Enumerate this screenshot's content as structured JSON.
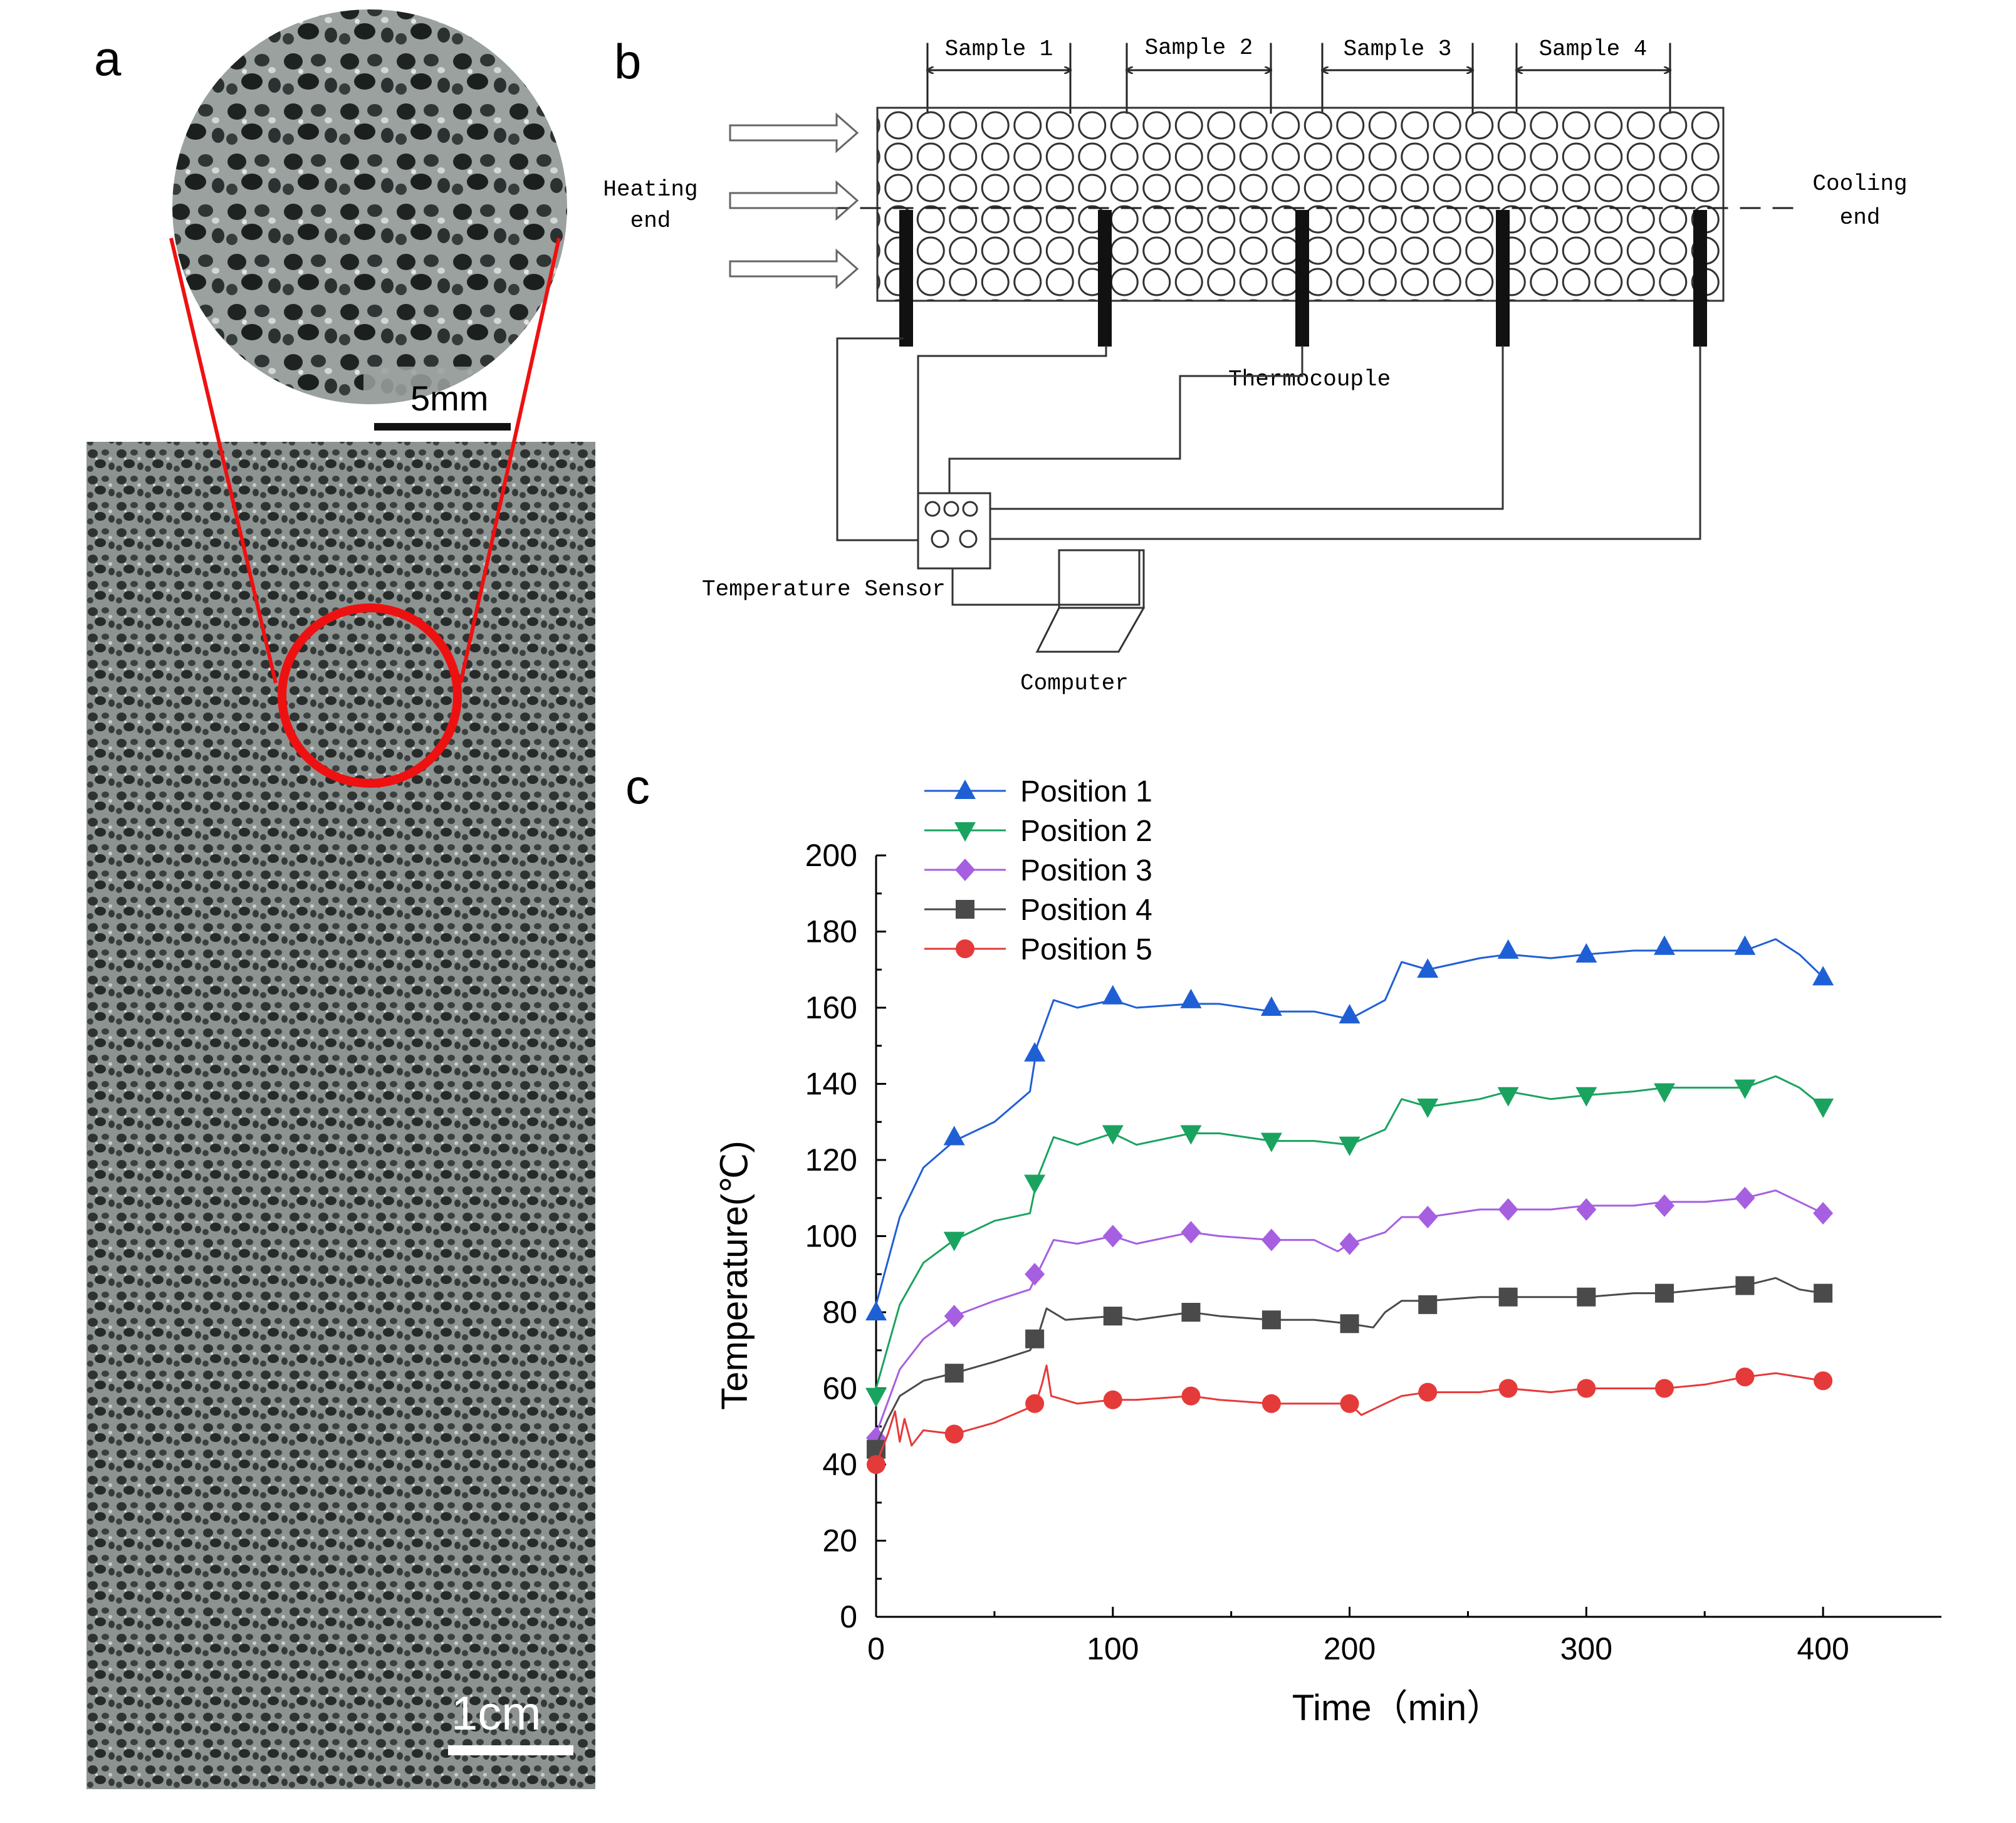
{
  "panels": {
    "a": {
      "letter": "a",
      "zoom_scale_label": "5mm",
      "main_scale_label": "1cm"
    },
    "b": {
      "letter": "b",
      "samples": [
        "Sample 1",
        "Sample 2",
        "Sample 3",
        "Sample 4"
      ],
      "heating_label": [
        "Heating",
        "end"
      ],
      "cooling_label": [
        "Cooling",
        "end"
      ],
      "thermocouple_label": "Thermocouple",
      "sensor_label": "Temperature Sensor",
      "computer_label": "Computer"
    },
    "c": {
      "letter": "c"
    }
  },
  "colors": {
    "position1": "#1f5fd6",
    "position2": "#1aa35f",
    "position3": "#a65fe0",
    "position4": "#4a4a4a",
    "position5": "#e53a3a",
    "highlight": "#ee1111"
  },
  "chart_data": {
    "type": "line",
    "title": "",
    "xlabel": "Time（min）",
    "ylabel": "Temperature(℃)",
    "xlim": [
      0,
      450
    ],
    "ylim": [
      0,
      200
    ],
    "xticks": [
      0,
      100,
      200,
      300,
      400
    ],
    "yticks": [
      0,
      20,
      40,
      60,
      80,
      100,
      120,
      140,
      160,
      180,
      200
    ],
    "legend_position": "top-left",
    "series": [
      {
        "name": "Position 1",
        "marker": "triangle-up",
        "line": [
          [
            0,
            82
          ],
          [
            10,
            105
          ],
          [
            20,
            118
          ],
          [
            33,
            125
          ],
          [
            50,
            130
          ],
          [
            65,
            138
          ],
          [
            68,
            150
          ],
          [
            75,
            162
          ],
          [
            85,
            160
          ],
          [
            100,
            162
          ],
          [
            110,
            160
          ],
          [
            133,
            161
          ],
          [
            145,
            161
          ],
          [
            167,
            159
          ],
          [
            185,
            159
          ],
          [
            200,
            157
          ],
          [
            215,
            162
          ],
          [
            222,
            172
          ],
          [
            233,
            170
          ],
          [
            255,
            173
          ],
          [
            267,
            174
          ],
          [
            285,
            173
          ],
          [
            300,
            174
          ],
          [
            320,
            175
          ],
          [
            333,
            175
          ],
          [
            350,
            175
          ],
          [
            367,
            175
          ],
          [
            380,
            178
          ],
          [
            390,
            174
          ],
          [
            400,
            168
          ]
        ],
        "markers": [
          [
            0,
            80
          ],
          [
            33,
            126
          ],
          [
            67,
            148
          ],
          [
            100,
            163
          ],
          [
            133,
            162
          ],
          [
            167,
            160
          ],
          [
            200,
            158
          ],
          [
            233,
            170
          ],
          [
            267,
            175
          ],
          [
            300,
            174
          ],
          [
            333,
            176
          ],
          [
            367,
            176
          ],
          [
            400,
            168
          ]
        ]
      },
      {
        "name": "Position 2",
        "marker": "triangle-down",
        "line": [
          [
            0,
            60
          ],
          [
            10,
            82
          ],
          [
            20,
            93
          ],
          [
            33,
            99
          ],
          [
            50,
            104
          ],
          [
            65,
            106
          ],
          [
            68,
            115
          ],
          [
            75,
            126
          ],
          [
            85,
            124
          ],
          [
            100,
            127
          ],
          [
            110,
            124
          ],
          [
            133,
            127
          ],
          [
            145,
            127
          ],
          [
            167,
            125
          ],
          [
            185,
            125
          ],
          [
            200,
            124
          ],
          [
            215,
            128
          ],
          [
            222,
            136
          ],
          [
            233,
            134
          ],
          [
            255,
            136
          ],
          [
            267,
            138
          ],
          [
            285,
            136
          ],
          [
            300,
            137
          ],
          [
            320,
            138
          ],
          [
            333,
            139
          ],
          [
            350,
            139
          ],
          [
            367,
            139
          ],
          [
            380,
            142
          ],
          [
            390,
            139
          ],
          [
            400,
            134
          ]
        ],
        "markers": [
          [
            0,
            58
          ],
          [
            33,
            99
          ],
          [
            67,
            114
          ],
          [
            100,
            127
          ],
          [
            133,
            127
          ],
          [
            167,
            125
          ],
          [
            200,
            124
          ],
          [
            233,
            134
          ],
          [
            267,
            137
          ],
          [
            300,
            137
          ],
          [
            333,
            138
          ],
          [
            367,
            139
          ],
          [
            400,
            134
          ]
        ]
      },
      {
        "name": "Position 3",
        "marker": "diamond",
        "line": [
          [
            0,
            48
          ],
          [
            10,
            65
          ],
          [
            20,
            73
          ],
          [
            33,
            79
          ],
          [
            50,
            83
          ],
          [
            65,
            86
          ],
          [
            68,
            90
          ],
          [
            75,
            99
          ],
          [
            85,
            98
          ],
          [
            100,
            100
          ],
          [
            110,
            98
          ],
          [
            133,
            101
          ],
          [
            145,
            100
          ],
          [
            167,
            99
          ],
          [
            185,
            99
          ],
          [
            195,
            96
          ],
          [
            200,
            98
          ],
          [
            215,
            101
          ],
          [
            222,
            105
          ],
          [
            233,
            105
          ],
          [
            255,
            107
          ],
          [
            267,
            107
          ],
          [
            285,
            107
          ],
          [
            300,
            108
          ],
          [
            320,
            108
          ],
          [
            333,
            109
          ],
          [
            350,
            109
          ],
          [
            367,
            110
          ],
          [
            380,
            112
          ],
          [
            390,
            109
          ],
          [
            400,
            106
          ]
        ],
        "markers": [
          [
            0,
            47
          ],
          [
            33,
            79
          ],
          [
            67,
            90
          ],
          [
            100,
            100
          ],
          [
            133,
            101
          ],
          [
            167,
            99
          ],
          [
            200,
            98
          ],
          [
            233,
            105
          ],
          [
            267,
            107
          ],
          [
            300,
            107
          ],
          [
            333,
            108
          ],
          [
            367,
            110
          ],
          [
            400,
            106
          ]
        ]
      },
      {
        "name": "Position 4",
        "marker": "square",
        "line": [
          [
            0,
            45
          ],
          [
            5,
            52
          ],
          [
            10,
            58
          ],
          [
            20,
            62
          ],
          [
            33,
            64
          ],
          [
            50,
            67
          ],
          [
            65,
            70
          ],
          [
            68,
            73
          ],
          [
            72,
            81
          ],
          [
            80,
            78
          ],
          [
            100,
            79
          ],
          [
            110,
            78
          ],
          [
            133,
            80
          ],
          [
            145,
            79
          ],
          [
            167,
            78
          ],
          [
            185,
            78
          ],
          [
            200,
            77
          ],
          [
            210,
            76
          ],
          [
            215,
            80
          ],
          [
            222,
            83
          ],
          [
            233,
            83
          ],
          [
            255,
            84
          ],
          [
            267,
            84
          ],
          [
            285,
            84
          ],
          [
            300,
            84
          ],
          [
            320,
            85
          ],
          [
            333,
            85
          ],
          [
            350,
            86
          ],
          [
            367,
            87
          ],
          [
            380,
            89
          ],
          [
            390,
            86
          ],
          [
            400,
            85
          ]
        ],
        "markers": [
          [
            0,
            44
          ],
          [
            33,
            64
          ],
          [
            67,
            73
          ],
          [
            100,
            79
          ],
          [
            133,
            80
          ],
          [
            167,
            78
          ],
          [
            200,
            77
          ],
          [
            233,
            82
          ],
          [
            267,
            84
          ],
          [
            300,
            84
          ],
          [
            333,
            85
          ],
          [
            367,
            87
          ],
          [
            400,
            85
          ]
        ]
      },
      {
        "name": "Position 5",
        "marker": "circle",
        "line": [
          [
            0,
            40
          ],
          [
            5,
            48
          ],
          [
            8,
            54
          ],
          [
            10,
            46
          ],
          [
            12,
            52
          ],
          [
            15,
            45
          ],
          [
            20,
            49
          ],
          [
            33,
            48
          ],
          [
            50,
            51
          ],
          [
            65,
            55
          ],
          [
            68,
            57
          ],
          [
            70,
            61
          ],
          [
            72,
            66
          ],
          [
            74,
            58
          ],
          [
            85,
            56
          ],
          [
            100,
            57
          ],
          [
            110,
            57
          ],
          [
            133,
            58
          ],
          [
            145,
            57
          ],
          [
            167,
            56
          ],
          [
            185,
            56
          ],
          [
            200,
            56
          ],
          [
            205,
            53
          ],
          [
            215,
            56
          ],
          [
            222,
            58
          ],
          [
            233,
            59
          ],
          [
            255,
            59
          ],
          [
            267,
            60
          ],
          [
            285,
            59
          ],
          [
            300,
            60
          ],
          [
            320,
            60
          ],
          [
            333,
            60
          ],
          [
            350,
            61
          ],
          [
            367,
            63
          ],
          [
            380,
            64
          ],
          [
            390,
            63
          ],
          [
            400,
            62
          ]
        ],
        "markers": [
          [
            0,
            40
          ],
          [
            33,
            48
          ],
          [
            67,
            56
          ],
          [
            100,
            57
          ],
          [
            133,
            58
          ],
          [
            167,
            56
          ],
          [
            200,
            56
          ],
          [
            233,
            59
          ],
          [
            267,
            60
          ],
          [
            300,
            60
          ],
          [
            333,
            60
          ],
          [
            367,
            63
          ],
          [
            400,
            62
          ]
        ]
      }
    ]
  }
}
